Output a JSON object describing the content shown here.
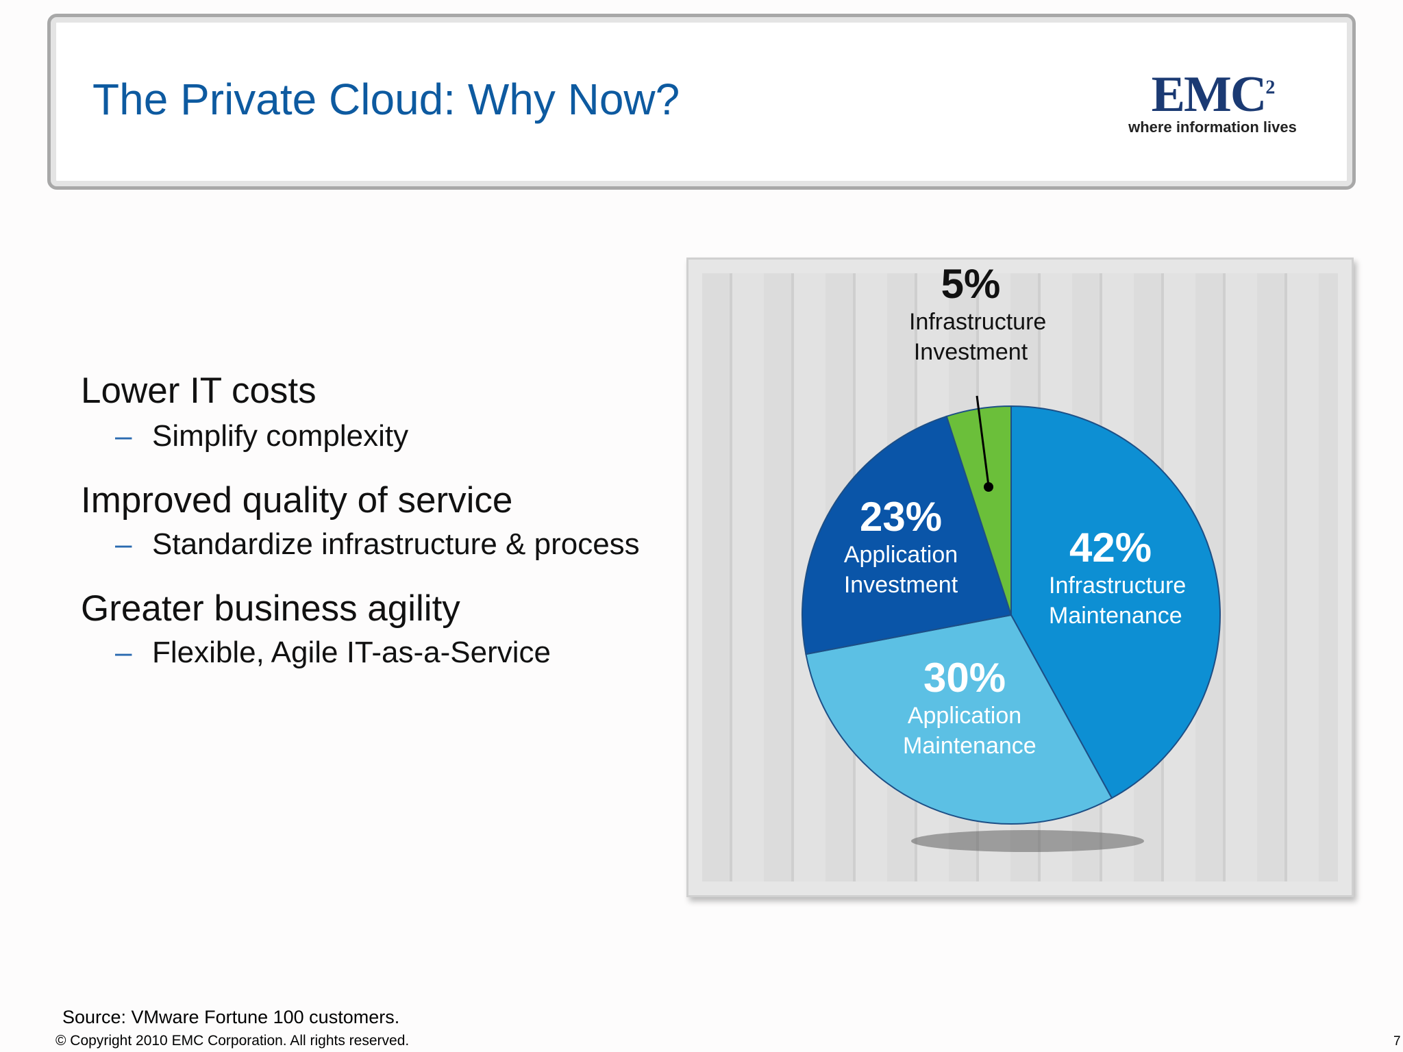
{
  "header": {
    "title": "The Private Cloud: Why Now?",
    "logo": {
      "brand": "EMC",
      "superscript": "2",
      "tagline": "where information lives"
    }
  },
  "bullets": [
    {
      "text": "Lower IT costs",
      "sub": "Simplify complexity"
    },
    {
      "text": "Improved quality of service",
      "sub": "Standardize infrastructure & process"
    },
    {
      "text": "Greater business agility",
      "sub": "Flexible, Agile IT-as-a-Service"
    }
  ],
  "bullet_dash": "–",
  "chart_data": {
    "type": "pie",
    "categories": [
      "Infrastructure Maintenance",
      "Application Maintenance",
      "Application Investment",
      "Infrastructure Investment"
    ],
    "values": [
      42,
      30,
      23,
      5
    ],
    "value_labels": [
      "42%",
      "30%",
      "23%",
      "5%"
    ],
    "colors": [
      "#0d8fd3",
      "#5cc0e4",
      "#0a55a8",
      "#6bbf3a"
    ]
  },
  "source": "Source: VMware Fortune 100 customers.",
  "copyright": "© Copyright 2010 EMC Corporation. All rights reserved.",
  "page_number": "7"
}
